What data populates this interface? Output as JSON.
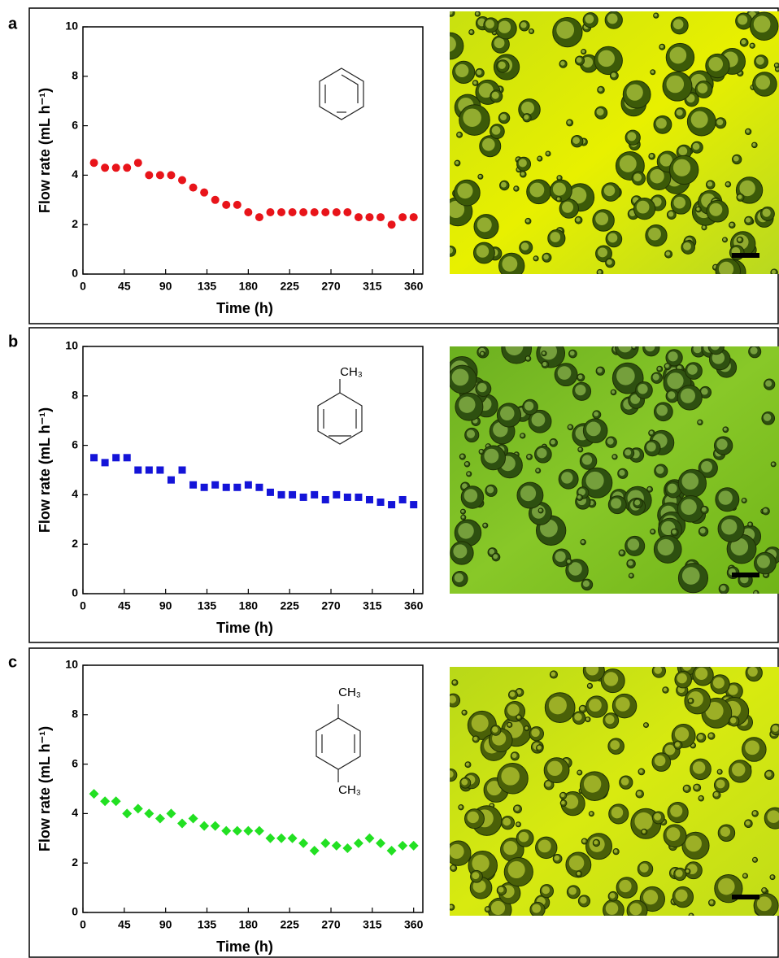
{
  "chart_data": [
    {
      "type": "scatter",
      "panel_label": "a",
      "marker": "circle",
      "color": "#e8141a",
      "x_label": "Time (h)",
      "y_label": "Flow  rate (mL h⁻¹)",
      "structure_labels": [],
      "x": [
        12,
        24,
        36,
        48,
        60,
        72,
        84,
        96,
        108,
        120,
        132,
        144,
        156,
        168,
        180,
        192,
        204,
        216,
        228,
        240,
        252,
        264,
        276,
        288,
        300,
        312,
        324,
        336,
        348,
        360
      ],
      "values": [
        4.5,
        4.3,
        4.3,
        4.3,
        4.5,
        4.0,
        4.0,
        4.0,
        3.8,
        3.5,
        3.3,
        3.0,
        2.8,
        2.8,
        2.5,
        2.3,
        2.5,
        2.5,
        2.5,
        2.5,
        2.5,
        2.5,
        2.5,
        2.5,
        2.3,
        2.3,
        2.3,
        2.0,
        2.3,
        2.3
      ],
      "xlim": [
        0,
        370
      ],
      "xticks": [
        0,
        45,
        90,
        135,
        180,
        225,
        270,
        315,
        360
      ],
      "ylim": [
        0,
        10
      ],
      "yticks": [
        0,
        2,
        4,
        6,
        8,
        10
      ]
    },
    {
      "type": "scatter",
      "panel_label": "b",
      "marker": "square",
      "color": "#1414d8",
      "x_label": "Time (h)",
      "y_label": "Flow  rate (mL h⁻¹)",
      "structure_labels": [
        "CH₃"
      ],
      "x": [
        12,
        24,
        36,
        48,
        60,
        72,
        84,
        96,
        108,
        120,
        132,
        144,
        156,
        168,
        180,
        192,
        204,
        216,
        228,
        240,
        252,
        264,
        276,
        288,
        300,
        312,
        324,
        336,
        348,
        360
      ],
      "values": [
        5.5,
        5.3,
        5.5,
        5.5,
        5.0,
        5.0,
        5.0,
        4.6,
        5.0,
        4.4,
        4.3,
        4.4,
        4.3,
        4.3,
        4.4,
        4.3,
        4.1,
        4.0,
        4.0,
        3.9,
        4.0,
        3.8,
        4.0,
        3.9,
        3.9,
        3.8,
        3.7,
        3.6,
        3.8,
        3.6
      ],
      "xlim": [
        0,
        370
      ],
      "xticks": [
        0,
        45,
        90,
        135,
        180,
        225,
        270,
        315,
        360
      ],
      "ylim": [
        0,
        10
      ],
      "yticks": [
        0,
        2,
        4,
        6,
        8,
        10
      ]
    },
    {
      "type": "scatter",
      "panel_label": "c",
      "marker": "diamond",
      "color": "#22e022",
      "x_label": "Time (h)",
      "y_label": "Flow  rate (mL h⁻¹)",
      "structure_labels": [
        "CH₃",
        "CH₃"
      ],
      "x": [
        12,
        24,
        36,
        48,
        60,
        72,
        84,
        96,
        108,
        120,
        132,
        144,
        156,
        168,
        180,
        192,
        204,
        216,
        228,
        240,
        252,
        264,
        276,
        288,
        300,
        312,
        324,
        336,
        348,
        360
      ],
      "values": [
        4.8,
        4.5,
        4.5,
        4.0,
        4.2,
        4.0,
        3.8,
        4.0,
        3.6,
        3.8,
        3.5,
        3.5,
        3.3,
        3.3,
        3.3,
        3.3,
        3.0,
        3.0,
        3.0,
        2.8,
        2.5,
        2.8,
        2.7,
        2.6,
        2.8,
        3.0,
        2.8,
        2.5,
        2.7,
        2.7
      ],
      "xlim": [
        0,
        370
      ],
      "xticks": [
        0,
        45,
        90,
        135,
        180,
        225,
        270,
        315,
        360
      ],
      "ylim": [
        0,
        10
      ],
      "yticks": [
        0,
        2,
        4,
        6,
        8,
        10
      ]
    }
  ]
}
